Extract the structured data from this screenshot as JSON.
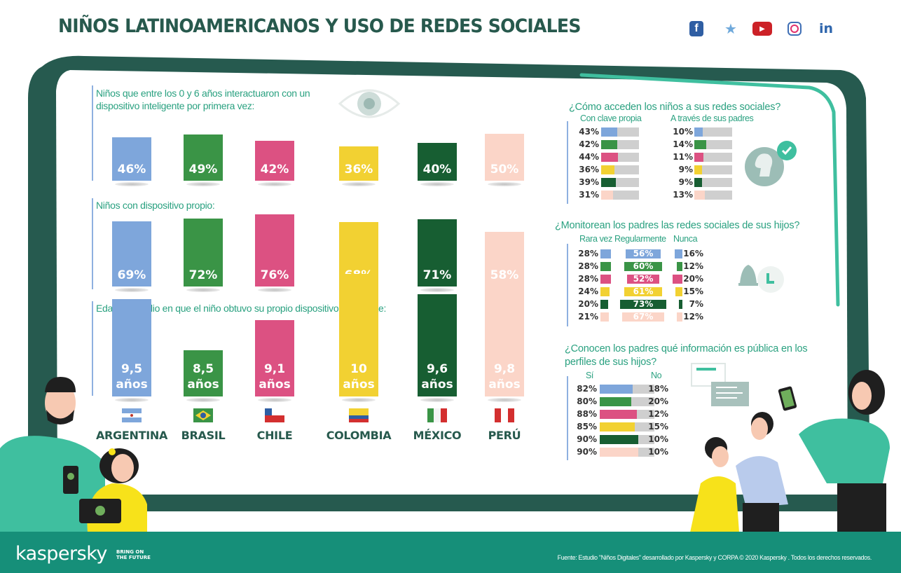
{
  "header": {
    "title": "NIÑOS LATINOAMERICANOS Y USO DE REDES SOCIALES",
    "social_icons": [
      "facebook-icon",
      "twitter-icon",
      "youtube-icon",
      "instagram-icon",
      "linkedin-icon"
    ],
    "social_glyphs": {
      "facebook": "f",
      "twitter": "🐦",
      "youtube": "▶",
      "linkedin": "in"
    }
  },
  "colors": {
    "argentina": "#7ea6db",
    "brasil": "#3a9446",
    "chile": "#dc5182",
    "colombia": "#f2d132",
    "mexico": "#175e32",
    "peru": "#fbd5c8",
    "title_green": "#27594d",
    "text_teal": "#2aa180",
    "frame_dark": "#265a4f",
    "accent_teal": "#3fbf9f",
    "footer": "#168f79",
    "track_gray": "#cfcfcf"
  },
  "chart_data": [
    {
      "type": "bar",
      "title": "Niños que entre los 0 y 6 años interactuaron con un dispositivo inteligente por primera vez:",
      "categories": [
        "Argentina",
        "Brasil",
        "Chile",
        "Colombia",
        "México",
        "Perú"
      ],
      "values": [
        46,
        49,
        42,
        36,
        40,
        50
      ],
      "labels": [
        "46%",
        "49%",
        "42%",
        "36%",
        "40%",
        "50%"
      ],
      "unit": "%"
    },
    {
      "type": "bar",
      "title": "Niños con dispositivo propio:",
      "categories": [
        "Argentina",
        "Brasil",
        "Chile",
        "Colombia",
        "México",
        "Perú"
      ],
      "values": [
        69,
        72,
        76,
        68,
        71,
        58
      ],
      "labels": [
        "69%",
        "72%",
        "76%",
        "68%",
        "71%",
        "58%"
      ],
      "unit": "%"
    },
    {
      "type": "bar",
      "title": "Edad promedio en que el niño obtuvo su propio dispositivo inteligente:",
      "categories": [
        "Argentina",
        "Brasil",
        "Chile",
        "Colombia",
        "México",
        "Perú"
      ],
      "values": [
        9.5,
        8.5,
        9.1,
        10,
        9.6,
        9.8
      ],
      "labels": [
        "9,5",
        "8,5",
        "9,1",
        "10",
        "9,6",
        "9,8"
      ],
      "unit_label": "años"
    },
    {
      "type": "bar",
      "orientation": "horizontal",
      "title": "¿Cómo acceden los niños a sus redes sociales?",
      "categories": [
        "Argentina",
        "Brasil",
        "Chile",
        "Colombia",
        "México",
        "Perú"
      ],
      "series": [
        {
          "name": "Con clave propia",
          "values": [
            43,
            42,
            44,
            36,
            39,
            31
          ]
        },
        {
          "name": "A través de sus padres",
          "values": [
            10,
            14,
            11,
            9,
            9,
            13
          ]
        }
      ]
    },
    {
      "type": "bar",
      "orientation": "horizontal",
      "title": "¿Monitorean los padres las redes sociales de sus hijos?",
      "categories": [
        "Argentina",
        "Brasil",
        "Chile",
        "Colombia",
        "México",
        "Perú"
      ],
      "series": [
        {
          "name": "Rara vez",
          "values": [
            28,
            28,
            28,
            24,
            20,
            21
          ]
        },
        {
          "name": "Regularmente",
          "values": [
            56,
            60,
            52,
            61,
            73,
            67
          ]
        },
        {
          "name": "Nunca",
          "values": [
            16,
            12,
            20,
            15,
            7,
            12
          ]
        }
      ]
    },
    {
      "type": "bar",
      "orientation": "horizontal",
      "stacked": true,
      "title": "¿Conocen los padres qué información es pública en los perfiles de sus hijos?",
      "categories": [
        "Argentina",
        "Brasil",
        "Chile",
        "Colombia",
        "México",
        "Perú"
      ],
      "series": [
        {
          "name": "Sí",
          "values": [
            82,
            80,
            88,
            85,
            90,
            90
          ]
        },
        {
          "name": "No",
          "values": [
            18,
            20,
            12,
            15,
            10,
            10
          ]
        }
      ]
    }
  ],
  "panels": {
    "first_time": {
      "title": "Niños que entre los 0 y 6 años interactuaron con un dispositivo inteligente por primera vez:",
      "labels": [
        "46%",
        "49%",
        "42%",
        "36%",
        "40%",
        "50%"
      ]
    },
    "own_device": {
      "title": "Niños con dispositivo propio:",
      "labels": [
        "69%",
        "72%",
        "76%",
        "68%",
        "71%",
        "58%"
      ]
    },
    "avg_age": {
      "title": "Edad promedio en que el niño obtuvo su propio dispositivo inteligente:",
      "labels": [
        "9,5",
        "8,5",
        "9,1",
        "10",
        "9,6",
        "9,8"
      ],
      "unit": "años"
    },
    "countries": [
      "ARGENTINA",
      "BRASIL",
      "CHILE",
      "COLOMBIA",
      "MÉXICO",
      "PERÚ"
    ],
    "access": {
      "title": "¿Cómo acceden los niños a sus redes sociales?",
      "col1": "Con clave propia",
      "col2": "A través de sus padres",
      "col1_labels": [
        "43%",
        "42%",
        "44%",
        "36%",
        "39%",
        "31%"
      ],
      "col2_labels": [
        "10%",
        "14%",
        "11%",
        "9%",
        "9%",
        "13%"
      ]
    },
    "monitor": {
      "title": "¿Monitorean los padres las redes sociales de sus hijos?",
      "col1": "Rara vez",
      "col2": "Regularmente",
      "col3": "Nunca",
      "col1_labels": [
        "28%",
        "28%",
        "28%",
        "24%",
        "20%",
        "21%"
      ],
      "col2_labels": [
        "56%",
        "60%",
        "52%",
        "61%",
        "73%",
        "67%"
      ],
      "col3_labels": [
        "16%",
        "12%",
        "20%",
        "15%",
        "7%",
        "12%"
      ]
    },
    "public_info": {
      "title_line1": "¿Conocen los padres qué información es pública en los",
      "title_line2": "perfiles de sus hijos?",
      "col_yes": "Sí",
      "col_no": "No",
      "yes_labels": [
        "82%",
        "80%",
        "88%",
        "85%",
        "90%",
        "90%"
      ],
      "no_labels": [
        "18%",
        "20%",
        "12%",
        "15%",
        "10%",
        "10%"
      ]
    }
  },
  "footer": {
    "logo": "kaspersky",
    "tagline_line1": "BRING ON",
    "tagline_line2": "THE FUTURE",
    "source": "Fuente: Estudio \"Niños Digitales\" desarrollado por Kaspersky y CORPA  © 2020 Kaspersky . Todos los derechos reservados."
  }
}
